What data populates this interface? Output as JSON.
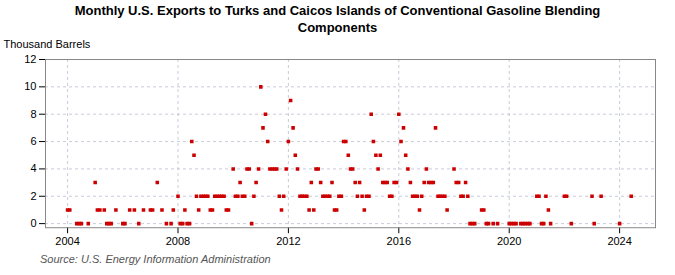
{
  "chart_data": {
    "type": "scatter",
    "title": "Monthly U.S. Exports to Turks and Caicos Islands of Conventional Gasoline Blending\nComponents",
    "ylabel": "Thousand Barrels",
    "annotations": [
      "Source: U.S. Energy Information Administration"
    ],
    "color": "#cc0000",
    "marker": "square",
    "grid": true,
    "xlim": [
      2003.2,
      2025.3
    ],
    "xticks": [
      2004,
      2008,
      2012,
      2016,
      2020,
      2024
    ],
    "ylim": [
      -0.3,
      12
    ],
    "yticks": [
      0,
      2,
      4,
      6,
      8,
      10,
      12
    ],
    "x": [
      2004.0,
      2004.08,
      2004.33,
      2004.42,
      2004.5,
      2004.75,
      2005.0,
      2005.08,
      2005.17,
      2005.33,
      2005.42,
      2005.5,
      2005.58,
      2005.75,
      2006.0,
      2006.08,
      2006.25,
      2006.42,
      2006.58,
      2006.75,
      2007.0,
      2007.08,
      2007.25,
      2007.42,
      2007.58,
      2007.75,
      2007.83,
      2008.0,
      2008.08,
      2008.17,
      2008.25,
      2008.33,
      2008.42,
      2008.5,
      2008.58,
      2008.67,
      2008.75,
      2008.83,
      2008.92,
      2009.0,
      2009.08,
      2009.17,
      2009.25,
      2009.33,
      2009.42,
      2009.5,
      2009.58,
      2009.67,
      2009.75,
      2009.83,
      2010.0,
      2010.08,
      2010.17,
      2010.25,
      2010.33,
      2010.42,
      2010.5,
      2010.58,
      2010.67,
      2010.75,
      2010.83,
      2010.92,
      2011.0,
      2011.08,
      2011.17,
      2011.25,
      2011.33,
      2011.42,
      2011.5,
      2011.58,
      2011.67,
      2011.75,
      2011.83,
      2011.92,
      2012.0,
      2012.08,
      2012.17,
      2012.25,
      2012.33,
      2012.42,
      2012.5,
      2012.58,
      2012.67,
      2012.75,
      2012.83,
      2012.92,
      2013.0,
      2013.08,
      2013.17,
      2013.25,
      2013.33,
      2013.42,
      2013.5,
      2013.58,
      2013.67,
      2013.75,
      2013.83,
      2013.92,
      2014.0,
      2014.08,
      2014.17,
      2014.25,
      2014.33,
      2014.42,
      2014.5,
      2014.58,
      2014.67,
      2014.75,
      2014.83,
      2014.92,
      2015.0,
      2015.08,
      2015.17,
      2015.25,
      2015.33,
      2015.42,
      2015.5,
      2015.58,
      2015.67,
      2015.75,
      2015.83,
      2015.92,
      2016.0,
      2016.08,
      2016.17,
      2016.25,
      2016.33,
      2016.42,
      2016.5,
      2016.58,
      2016.67,
      2016.75,
      2016.83,
      2016.92,
      2017.0,
      2017.08,
      2017.17,
      2017.25,
      2017.33,
      2017.42,
      2017.5,
      2017.58,
      2017.67,
      2017.75,
      2018.0,
      2018.08,
      2018.17,
      2018.25,
      2018.33,
      2018.42,
      2018.5,
      2018.58,
      2018.67,
      2018.75,
      2019.0,
      2019.08,
      2019.17,
      2019.25,
      2019.42,
      2019.58,
      2020.0,
      2020.08,
      2020.17,
      2020.25,
      2020.42,
      2020.5,
      2020.58,
      2020.67,
      2020.75,
      2021.0,
      2021.08,
      2021.17,
      2021.25,
      2021.33,
      2021.42,
      2021.5,
      2022.0,
      2022.08,
      2022.25,
      2023.0,
      2023.08,
      2023.33,
      2024.0,
      2024.42
    ],
    "values": [
      1,
      1,
      0,
      0,
      0,
      0,
      3,
      1,
      1,
      1,
      0,
      0,
      0,
      1,
      0,
      0,
      1,
      1,
      0,
      1,
      1,
      1,
      3,
      1,
      0,
      0,
      1,
      2,
      0,
      0,
      1,
      0,
      0,
      6,
      5,
      2,
      1,
      2,
      2,
      2,
      2,
      1,
      1,
      2,
      2,
      2,
      2,
      2,
      1,
      1,
      4,
      2,
      2,
      3,
      2,
      2,
      4,
      4,
      0,
      2,
      3,
      4,
      10,
      7,
      8,
      6,
      4,
      4,
      4,
      4,
      2,
      1,
      2,
      4,
      6,
      9,
      7,
      5,
      4,
      2,
      2,
      2,
      2,
      1,
      3,
      1,
      4,
      4,
      3,
      2,
      2,
      2,
      2,
      3,
      1,
      1,
      2,
      2,
      6,
      6,
      5,
      4,
      4,
      3,
      2,
      3,
      2,
      1,
      2,
      2,
      8,
      6,
      5,
      4,
      5,
      3,
      3,
      3,
      2,
      2,
      3,
      3,
      8,
      6,
      7,
      5,
      4,
      3,
      2,
      2,
      2,
      1,
      2,
      3,
      4,
      3,
      3,
      3,
      7,
      2,
      2,
      2,
      2,
      1,
      4,
      3,
      3,
      2,
      2,
      3,
      2,
      0,
      0,
      0,
      1,
      1,
      0,
      0,
      0,
      0,
      0,
      0,
      0,
      0,
      0,
      0,
      0,
      0,
      0,
      2,
      2,
      0,
      0,
      2,
      1,
      0,
      2,
      2,
      0,
      2,
      0,
      2,
      0,
      2
    ]
  }
}
